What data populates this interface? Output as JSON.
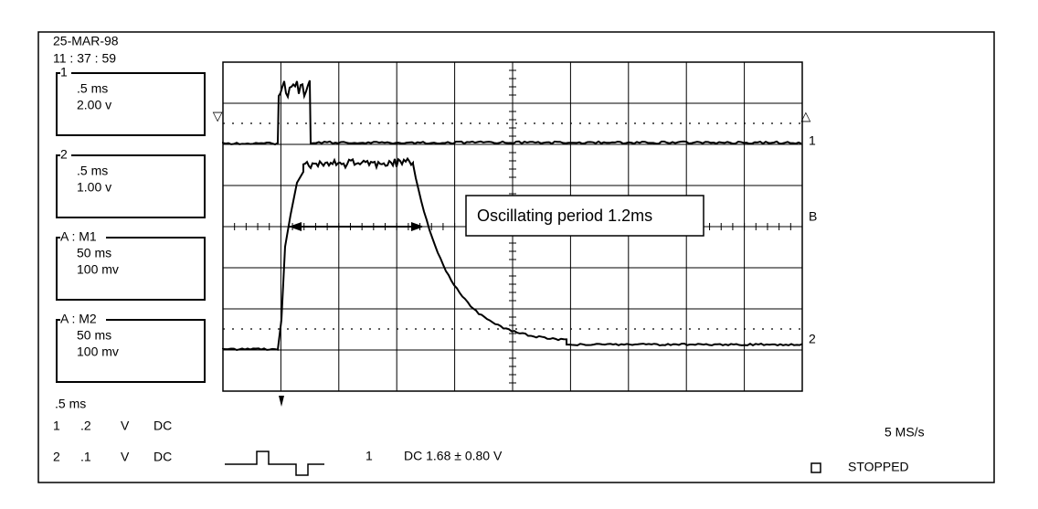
{
  "header": {
    "date": "25-MAR-98",
    "time": "11 : 37 : 59"
  },
  "channel_boxes": [
    {
      "label": "1",
      "lines": [
        ".5  ms",
        "2.00  v"
      ]
    },
    {
      "label": "2",
      "lines": [
        ".5  ms",
        "1.00  v"
      ]
    },
    {
      "label": "A : M1",
      "lines": [
        "50  ms",
        "100 mv"
      ]
    },
    {
      "label": "A : M2",
      "lines": [
        "50  ms",
        "100 mv"
      ]
    }
  ],
  "footer": {
    "timebase": ".5  ms",
    "channels": [
      [
        "1",
        ".2",
        "V",
        "DC"
      ],
      [
        "2",
        ".1",
        "V",
        "DC"
      ]
    ],
    "trigger_channel": "1",
    "trigger_level": "DC 1.68  ±  0.80  V",
    "sample_rate": "5  MS/s",
    "status": "STOPPED"
  },
  "markers": {
    "ch1": "1",
    "b": "B",
    "ch2": "2"
  },
  "annotation": "Oscillating period  1.2ms"
}
